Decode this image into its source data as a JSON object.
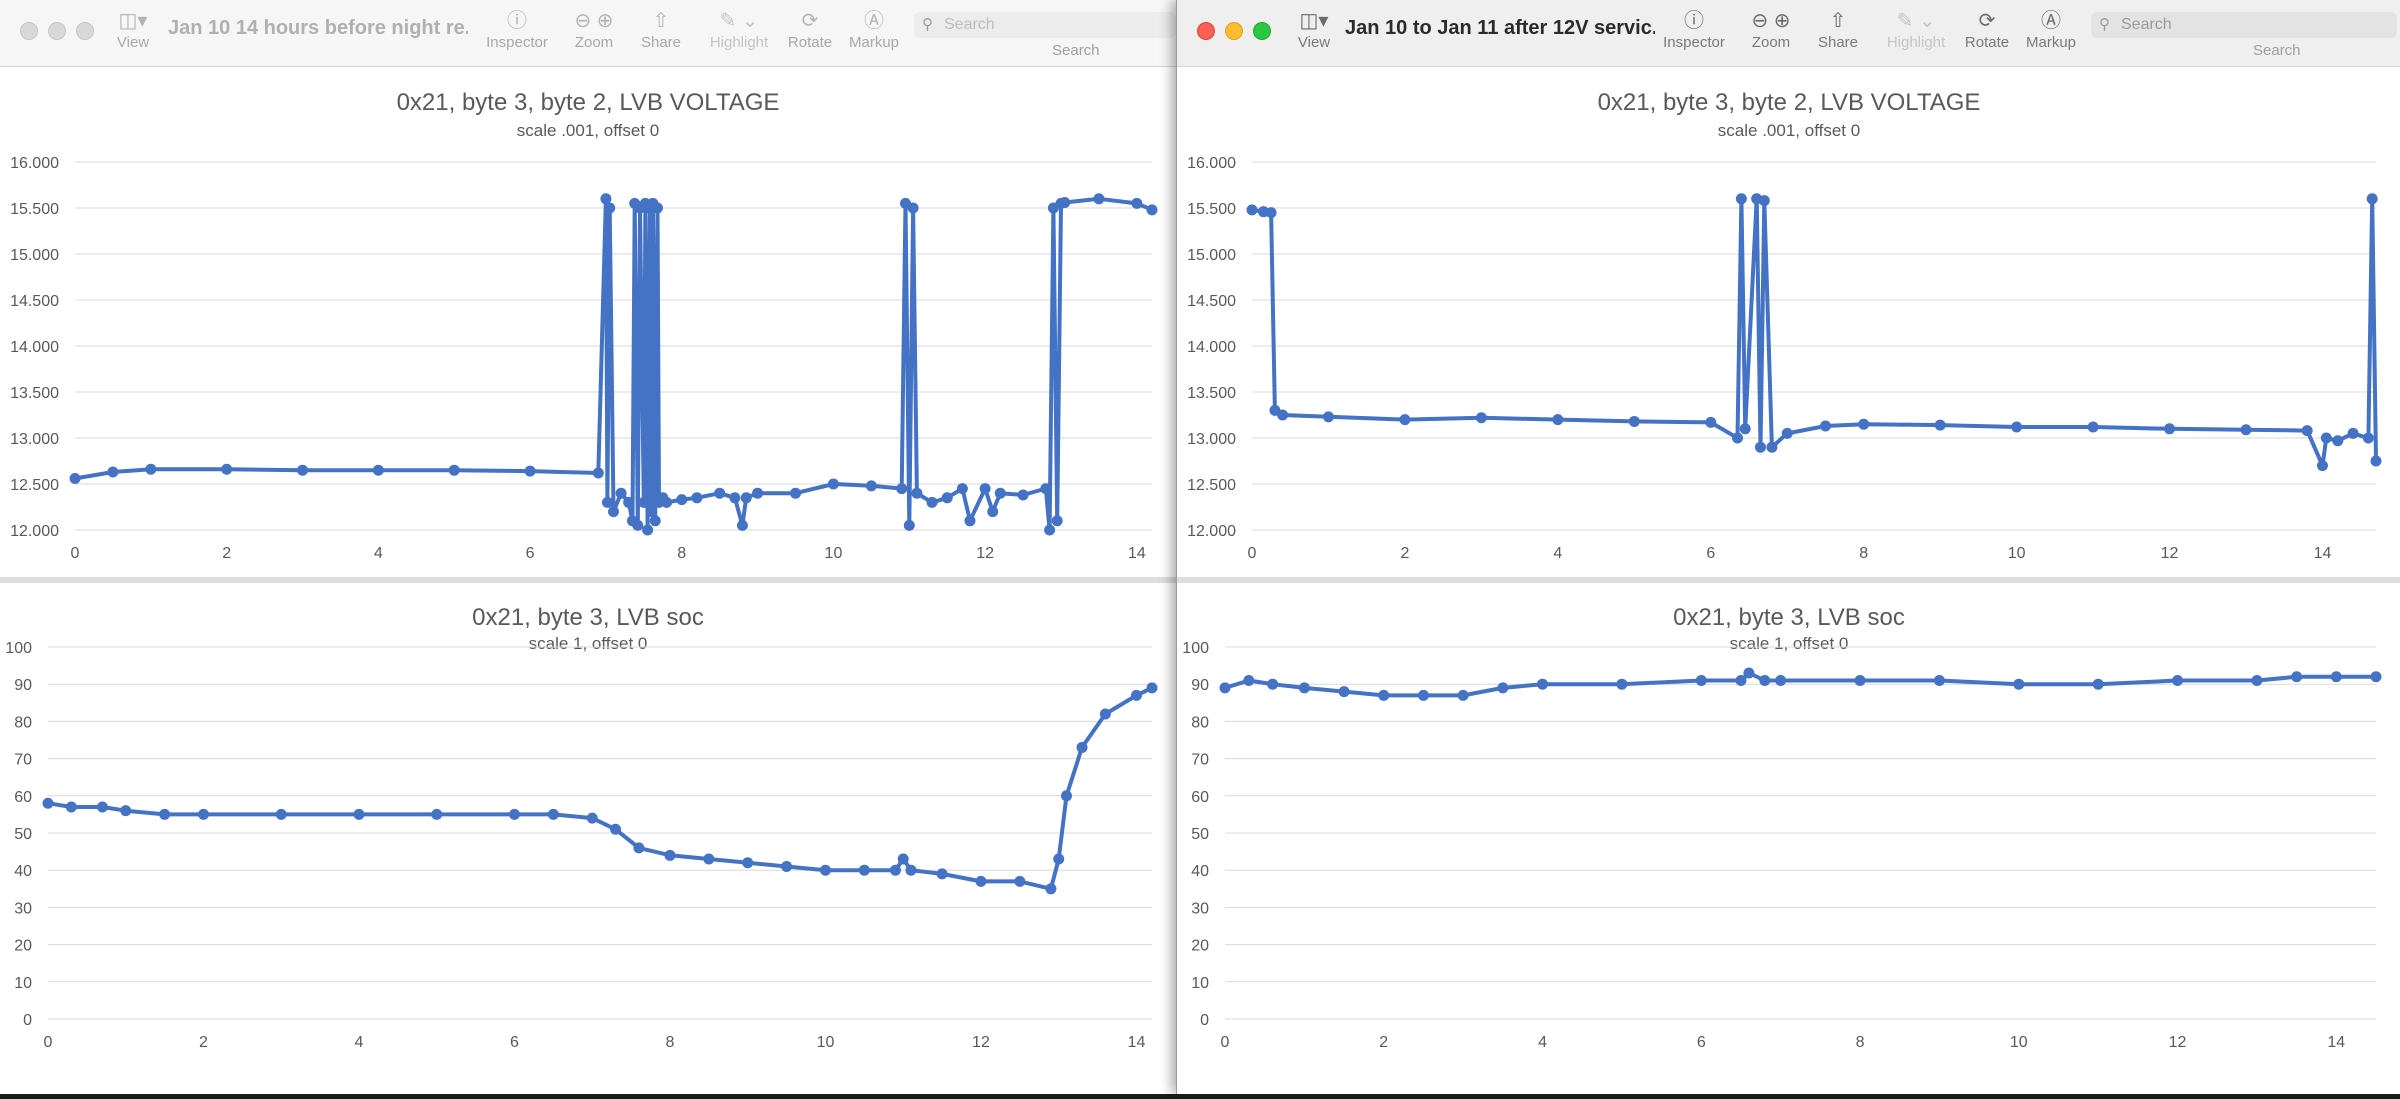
{
  "windows": [
    {
      "id": "left",
      "title": "Jan 10 14 hours before night re...",
      "active": false,
      "toolbar": {
        "view": "View",
        "inspector": "Inspector",
        "zoom": "Zoom",
        "share": "Share",
        "highlight": "Highlight",
        "rotate": "Rotate",
        "markup": "Markup",
        "search_placeholder": "Search",
        "search_label": "Search"
      }
    },
    {
      "id": "right",
      "title": "Jan 10 to Jan 11 after 12V servic...",
      "active": true,
      "toolbar": {
        "view": "View",
        "inspector": "Inspector",
        "zoom": "Zoom",
        "share": "Share",
        "highlight": "Highlight",
        "rotate": "Rotate",
        "markup": "Markup",
        "search_placeholder": "Search",
        "search_label": "Search"
      }
    }
  ],
  "icons": {
    "view": "sidebar-icon",
    "inspector": "info-circle-icon",
    "zoom_out": "zoom-out-icon",
    "zoom_in": "zoom-in-icon",
    "share": "share-icon",
    "highlight": "pen-icon",
    "rotate": "rotate-icon",
    "markup": "markup-icon",
    "search": "search-icon"
  },
  "colors": {
    "series": "#4472c4",
    "grid": "#d9d9d9",
    "text": "#595959"
  },
  "chart_data": [
    {
      "window": "left",
      "type": "line",
      "title": "0x21, byte 3, byte 2, LVB VOLTAGE",
      "subtitle": "scale .001, offset 0",
      "ylim": [
        12.0,
        16.0
      ],
      "yticks": [
        "12.000",
        "12.500",
        "13.000",
        "13.500",
        "14.000",
        "14.500",
        "15.000",
        "15.500",
        "16.000"
      ],
      "xlim": [
        0,
        14.2
      ],
      "xticks": [
        "0",
        "2",
        "4",
        "6",
        "8",
        "10",
        "12",
        "14"
      ],
      "grid": true,
      "legend": "none",
      "x": [
        0,
        0.5,
        1,
        2,
        3,
        4,
        5,
        6,
        6.9,
        7.0,
        7.02,
        7.05,
        7.1,
        7.2,
        7.3,
        7.35,
        7.38,
        7.42,
        7.45,
        7.5,
        7.52,
        7.55,
        7.58,
        7.6,
        7.62,
        7.65,
        7.68,
        7.7,
        7.75,
        7.8,
        8.0,
        8.2,
        8.5,
        8.7,
        8.8,
        8.85,
        9.0,
        9.5,
        10.0,
        10.5,
        10.9,
        10.95,
        11.0,
        11.05,
        11.1,
        11.3,
        11.5,
        11.7,
        11.8,
        12.0,
        12.1,
        12.2,
        12.5,
        12.8,
        12.85,
        12.9,
        12.95,
        13.0,
        13.05,
        13.5,
        14.0,
        14.2
      ],
      "y": [
        12.56,
        12.63,
        12.66,
        12.66,
        12.65,
        12.65,
        12.65,
        12.64,
        12.62,
        15.6,
        12.3,
        15.5,
        12.2,
        12.4,
        12.3,
        12.1,
        15.55,
        12.05,
        15.5,
        12.3,
        15.55,
        12.0,
        15.5,
        12.2,
        15.55,
        12.1,
        15.5,
        12.3,
        12.35,
        12.3,
        12.33,
        12.35,
        12.4,
        12.35,
        12.05,
        12.35,
        12.4,
        12.4,
        12.5,
        12.48,
        12.45,
        15.55,
        12.05,
        15.5,
        12.4,
        12.3,
        12.35,
        12.45,
        12.1,
        12.45,
        12.2,
        12.4,
        12.38,
        12.45,
        12.0,
        15.5,
        12.1,
        15.55,
        15.56,
        15.6,
        15.55,
        15.48
      ]
    },
    {
      "window": "left",
      "type": "line",
      "title": "0x21, byte 3, LVB soc",
      "subtitle": "scale 1, offset 0",
      "ylim": [
        0,
        100
      ],
      "yticks": [
        "0",
        "10",
        "20",
        "30",
        "40",
        "50",
        "60",
        "70",
        "80",
        "90",
        "100"
      ],
      "xlim": [
        0,
        14.2
      ],
      "xticks": [
        "0",
        "2",
        "4",
        "6",
        "8",
        "10",
        "12",
        "14"
      ],
      "grid": true,
      "legend": "none",
      "x": [
        0,
        0.3,
        0.7,
        1,
        1.5,
        2,
        3,
        4,
        5,
        6,
        6.5,
        7,
        7.3,
        7.6,
        8,
        8.5,
        9,
        9.5,
        10,
        10.5,
        10.9,
        11.0,
        11.1,
        11.5,
        12,
        12.5,
        12.9,
        13.0,
        13.1,
        13.3,
        13.6,
        14.0,
        14.2
      ],
      "y": [
        58,
        57,
        57,
        56,
        55,
        55,
        55,
        55,
        55,
        55,
        55,
        54,
        51,
        46,
        44,
        43,
        42,
        41,
        40,
        40,
        40,
        43,
        40,
        39,
        37,
        37,
        35,
        43,
        60,
        73,
        82,
        87,
        89
      ]
    },
    {
      "window": "right",
      "type": "line",
      "title": "0x21, byte 3, byte 2, LVB VOLTAGE",
      "subtitle": "scale .001, offset 0",
      "ylim": [
        12.0,
        16.0
      ],
      "yticks": [
        "12.000",
        "12.500",
        "13.000",
        "13.500",
        "14.000",
        "14.500",
        "15.000",
        "15.500",
        "16.000"
      ],
      "xlim": [
        0,
        14.7
      ],
      "xticks": [
        "0",
        "2",
        "4",
        "6",
        "8",
        "10",
        "12",
        "14"
      ],
      "grid": true,
      "legend": "none",
      "x": [
        0,
        0.15,
        0.25,
        0.3,
        0.4,
        1,
        2,
        3,
        4,
        5,
        6,
        6.35,
        6.4,
        6.45,
        6.6,
        6.65,
        6.7,
        6.8,
        7.0,
        7.5,
        8,
        9,
        10,
        11,
        12,
        13,
        13.8,
        14.0,
        14.05,
        14.2,
        14.4,
        14.6,
        14.65,
        14.7
      ],
      "y": [
        15.48,
        15.46,
        15.45,
        13.3,
        13.25,
        13.23,
        13.2,
        13.22,
        13.2,
        13.18,
        13.17,
        13.0,
        15.6,
        13.1,
        15.6,
        12.9,
        15.58,
        12.9,
        13.05,
        13.13,
        13.15,
        13.14,
        13.12,
        13.12,
        13.1,
        13.09,
        13.08,
        12.7,
        13.0,
        12.97,
        13.05,
        13.0,
        15.6,
        12.75
      ]
    },
    {
      "window": "right",
      "type": "line",
      "title": "0x21, byte 3, LVB soc",
      "subtitle": "scale 1, offset 0",
      "ylim": [
        0,
        100
      ],
      "yticks": [
        "0",
        "10",
        "20",
        "30",
        "40",
        "50",
        "60",
        "70",
        "80",
        "90",
        "100"
      ],
      "xlim": [
        0,
        14.5
      ],
      "xticks": [
        "0",
        "2",
        "4",
        "6",
        "8",
        "10",
        "12",
        "14"
      ],
      "grid": true,
      "legend": "none",
      "x": [
        0,
        0.3,
        0.6,
        1,
        1.5,
        2,
        2.5,
        3,
        3.5,
        4,
        5,
        6,
        6.5,
        6.6,
        6.8,
        7,
        8,
        9,
        10,
        11,
        12,
        13,
        13.5,
        14,
        14.5
      ],
      "y": [
        89,
        91,
        90,
        89,
        88,
        87,
        87,
        87,
        89,
        90,
        90,
        91,
        91,
        93,
        91,
        91,
        91,
        91,
        90,
        90,
        91,
        91,
        92,
        92,
        92
      ]
    }
  ]
}
